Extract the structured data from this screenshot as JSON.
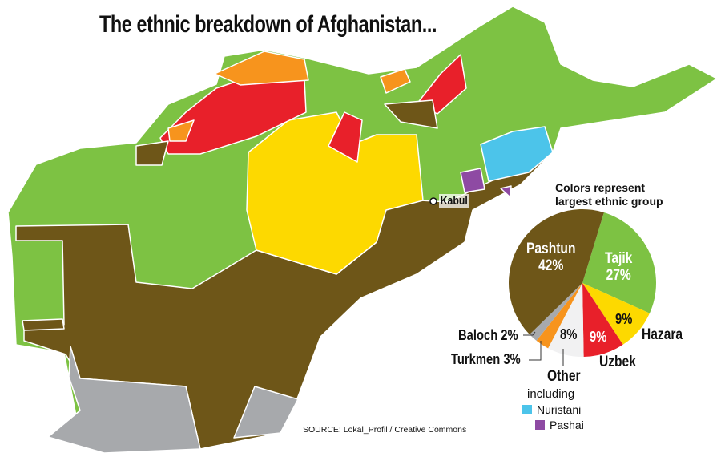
{
  "title": "The ethnic breakdown of Afghanistan...",
  "map": {
    "capital_label": "Kabul",
    "colors": {
      "pashtun": "#6e5618",
      "tajik": "#7dc243",
      "hazara": "#fdd900",
      "uzbek": "#e8202a",
      "turkmen": "#f7941d",
      "baloch": "#a7a9ac",
      "nuristani": "#4cc4ea",
      "pashai": "#8e4aa3",
      "border": "#ffffff"
    }
  },
  "legend_note": {
    "line1": "Colors represent",
    "line2": "largest ethnic group"
  },
  "chart_data": {
    "type": "pie",
    "title": "",
    "slices": [
      {
        "name": "Tajik",
        "value": 27,
        "label": "27%",
        "color": "#7dc243"
      },
      {
        "name": "Hazara",
        "value": 9,
        "label": "9%",
        "color": "#fdd900"
      },
      {
        "name": "Uzbek",
        "value": 9,
        "label": "9%",
        "color": "#e8202a"
      },
      {
        "name": "Other",
        "value": 8,
        "label": "8%",
        "color": "#f1f1f2"
      },
      {
        "name": "Turkmen",
        "value": 3,
        "label": "Turkmen 3%",
        "color": "#f7941d"
      },
      {
        "name": "Baloch",
        "value": 2,
        "label": "Baloch 2%",
        "color": "#a7a9ac"
      },
      {
        "name": "Pashtun",
        "value": 42,
        "label": "42%",
        "color": "#6e5618"
      }
    ],
    "other_note": "including",
    "other_items": [
      {
        "name": "Nuristani",
        "color": "#4cc4ea"
      },
      {
        "name": "Pashai",
        "color": "#8e4aa3"
      }
    ]
  },
  "source": "SOURCE: Lokal_Profil / Creative Commons"
}
